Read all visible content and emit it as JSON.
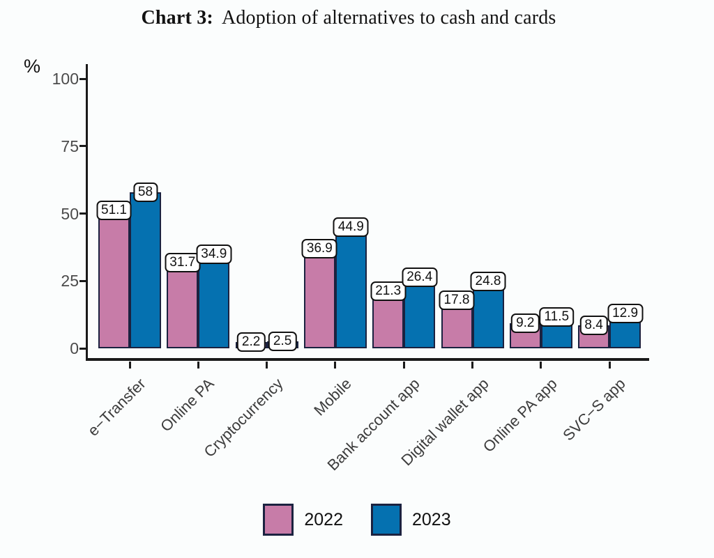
{
  "title": {
    "prefix": "Chart 3:",
    "text": "Adoption of alternatives to cash and cards"
  },
  "chart_data": {
    "type": "bar",
    "title": "Chart 3: Adoption of alternatives to cash and cards",
    "ylabel": "%",
    "ylim": [
      0,
      100
    ],
    "yticks": [
      0,
      25,
      50,
      75,
      100
    ],
    "grid": false,
    "legend_position": "bottom",
    "value_labels": true,
    "categories": [
      "e−Transfer",
      "Online PA",
      "Cryptocurrency",
      "Mobile",
      "Bank account app",
      "Digital wallet app",
      "Online PA app",
      "SVC−S app"
    ],
    "series": [
      {
        "name": "2022",
        "color": "#C77CA8",
        "values": [
          51.1,
          31.7,
          2.2,
          36.9,
          21.3,
          17.8,
          9.2,
          8.4
        ]
      },
      {
        "name": "2023",
        "color": "#0571B0",
        "values": [
          58,
          34.9,
          2.5,
          44.9,
          26.4,
          24.8,
          11.5,
          12.9
        ]
      }
    ],
    "bar_outline_color": "#1B2240",
    "axis_color": "#1a1a1a",
    "tick_label_color": "#4b4b4b"
  }
}
